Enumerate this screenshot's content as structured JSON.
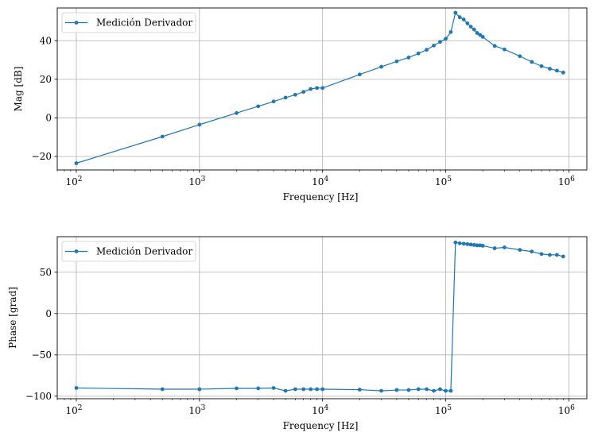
{
  "chart_data": [
    {
      "type": "line",
      "xscale": "log",
      "xlim": [
        70,
        1400000
      ],
      "ylim": [
        -27,
        57
      ],
      "xlabel": "Frequency [Hz]",
      "ylabel": "Mag [dB]",
      "xticks": [
        {
          "value": 100,
          "label": "10",
          "exp": "2"
        },
        {
          "value": 1000,
          "label": "10",
          "exp": "3"
        },
        {
          "value": 10000,
          "label": "10",
          "exp": "4"
        },
        {
          "value": 100000,
          "label": "10",
          "exp": "5"
        },
        {
          "value": 1000000,
          "label": "10",
          "exp": "6"
        }
      ],
      "yticks": [
        {
          "value": -20,
          "label": "−20"
        },
        {
          "value": 0,
          "label": "0"
        },
        {
          "value": 20,
          "label": "20"
        },
        {
          "value": 40,
          "label": "40"
        }
      ],
      "grid": true,
      "legend_position": "top-left",
      "series": [
        {
          "name": "Medición Derivador",
          "color": "#1f77b4",
          "x": [
            100,
            500,
            1000,
            2000,
            3000,
            4000,
            5000,
            6000,
            7000,
            8000,
            9000,
            10000,
            20000,
            30000,
            40000,
            50000,
            60000,
            70000,
            80000,
            90000,
            100000,
            110000,
            120000,
            130000,
            140000,
            150000,
            160000,
            170000,
            180000,
            190000,
            200000,
            250000,
            300000,
            400000,
            500000,
            600000,
            700000,
            800000,
            900000
          ],
          "y": [
            -23.5,
            -9.7,
            -3.5,
            2.5,
            6.0,
            8.5,
            10.5,
            12.0,
            13.5,
            15.0,
            15.5,
            15.5,
            22.5,
            26.5,
            29.3,
            31.3,
            33.4,
            35.3,
            37.5,
            39.4,
            41.0,
            44.5,
            54.5,
            52.2,
            51.0,
            49.0,
            47.3,
            45.8,
            44.0,
            43.0,
            42.0,
            37.3,
            35.5,
            32.0,
            29.0,
            26.8,
            25.5,
            24.5,
            23.5
          ]
        }
      ]
    },
    {
      "type": "line",
      "xscale": "log",
      "xlim": [
        70,
        1400000
      ],
      "ylim": [
        -103,
        93
      ],
      "xlabel": "Frequency [Hz]",
      "ylabel": "Phase [grad]",
      "xticks": [
        {
          "value": 100,
          "label": "10",
          "exp": "2"
        },
        {
          "value": 1000,
          "label": "10",
          "exp": "3"
        },
        {
          "value": 10000,
          "label": "10",
          "exp": "4"
        },
        {
          "value": 100000,
          "label": "10",
          "exp": "5"
        },
        {
          "value": 1000000,
          "label": "10",
          "exp": "6"
        }
      ],
      "yticks": [
        {
          "value": -100,
          "label": "−100"
        },
        {
          "value": -50,
          "label": "−50"
        },
        {
          "value": 0,
          "label": "0"
        },
        {
          "value": 50,
          "label": "50"
        }
      ],
      "grid": true,
      "legend_position": "top-left",
      "series": [
        {
          "name": "Medición Derivador",
          "color": "#1f77b4",
          "x": [
            100,
            500,
            1000,
            2000,
            3000,
            4000,
            5000,
            6000,
            7000,
            8000,
            9000,
            10000,
            20000,
            30000,
            40000,
            50000,
            60000,
            70000,
            80000,
            90000,
            100000,
            110000,
            120000,
            130000,
            140000,
            150000,
            160000,
            170000,
            180000,
            190000,
            200000,
            250000,
            300000,
            400000,
            500000,
            600000,
            700000,
            800000,
            900000
          ],
          "y": [
            -90,
            -91.5,
            -91.5,
            -90.5,
            -90.5,
            -90,
            -93.5,
            -91.5,
            -91.5,
            -91.5,
            -91.5,
            -91.5,
            -92,
            -93.5,
            -92.5,
            -92.5,
            -91.5,
            -91.5,
            -93.5,
            -91.5,
            -93.5,
            -93.5,
            86,
            85,
            84.5,
            84,
            83.5,
            83,
            82.5,
            82.5,
            82,
            79,
            80,
            77,
            75,
            72,
            71,
            71,
            69
          ]
        }
      ]
    }
  ]
}
